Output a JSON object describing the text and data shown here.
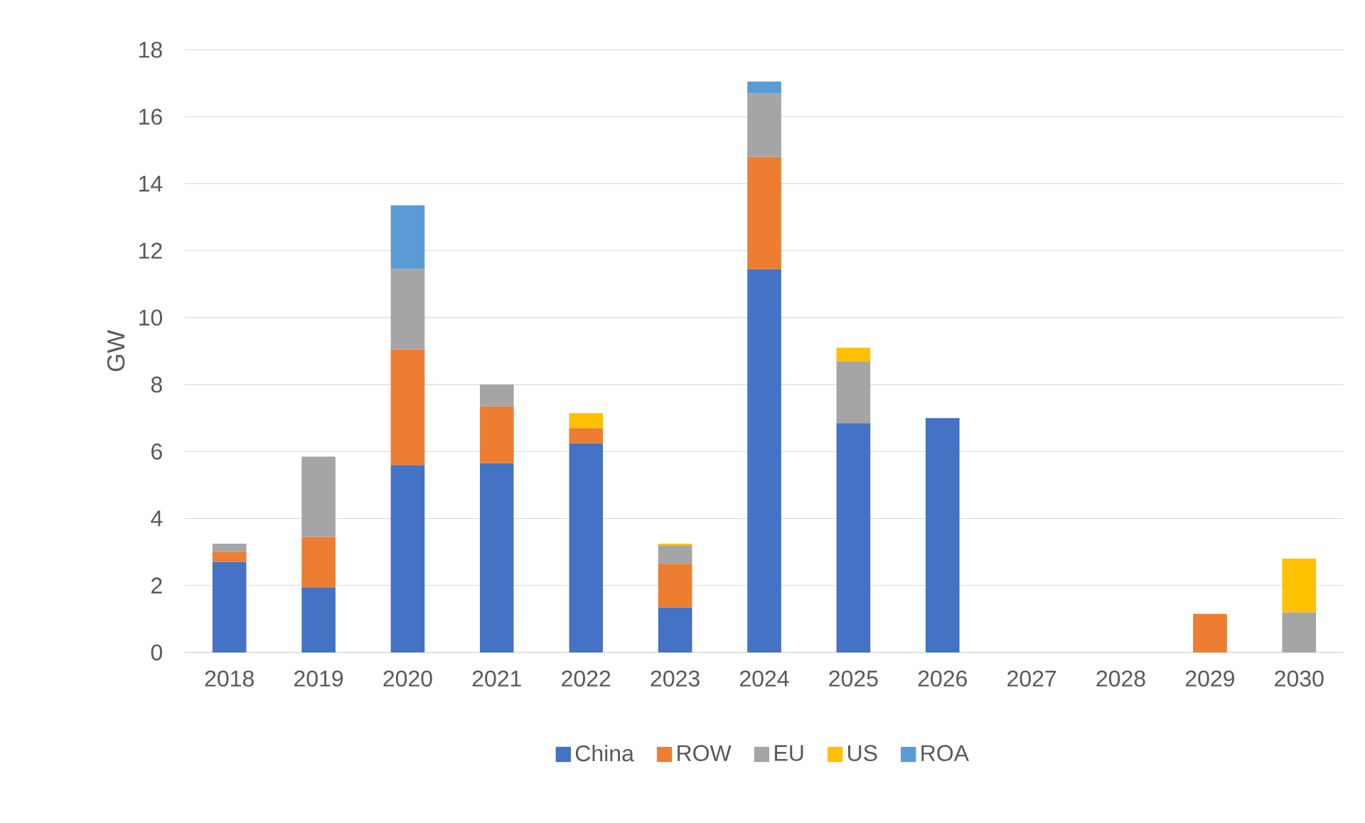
{
  "chart_data": {
    "type": "bar",
    "stacked": true,
    "ylabel": "GW",
    "categories": [
      "2018",
      "2019",
      "2020",
      "2021",
      "2022",
      "2023",
      "2024",
      "2025",
      "2026",
      "2027",
      "2028",
      "2029",
      "2030"
    ],
    "series": [
      {
        "name": "China",
        "color": "#4472c4",
        "values": [
          2.7,
          1.95,
          5.6,
          5.65,
          6.25,
          1.35,
          11.45,
          6.85,
          7.0,
          null,
          null,
          null,
          null
        ]
      },
      {
        "name": "ROW",
        "color": "#ed7d31",
        "values": [
          0.3,
          1.5,
          3.45,
          1.7,
          0.45,
          1.3,
          3.35,
          null,
          null,
          null,
          null,
          1.15,
          null
        ]
      },
      {
        "name": "EU",
        "color": "#a5a5a5",
        "values": [
          0.25,
          2.4,
          2.4,
          0.65,
          null,
          0.55,
          1.9,
          1.85,
          null,
          null,
          null,
          null,
          1.2
        ]
      },
      {
        "name": "US",
        "color": "#ffc000",
        "values": [
          null,
          null,
          null,
          null,
          0.45,
          0.05,
          null,
          0.4,
          null,
          null,
          null,
          null,
          1.6
        ]
      },
      {
        "name": "ROA",
        "color": "#5b9bd5",
        "values": [
          null,
          null,
          1.9,
          null,
          null,
          null,
          0.35,
          null,
          null,
          null,
          null,
          null,
          null
        ]
      }
    ],
    "ylim": [
      0,
      18
    ],
    "yticks": [
      0,
      2,
      4,
      6,
      8,
      10,
      12,
      14,
      16,
      18
    ],
    "grid": "y",
    "legend": "bottom"
  }
}
